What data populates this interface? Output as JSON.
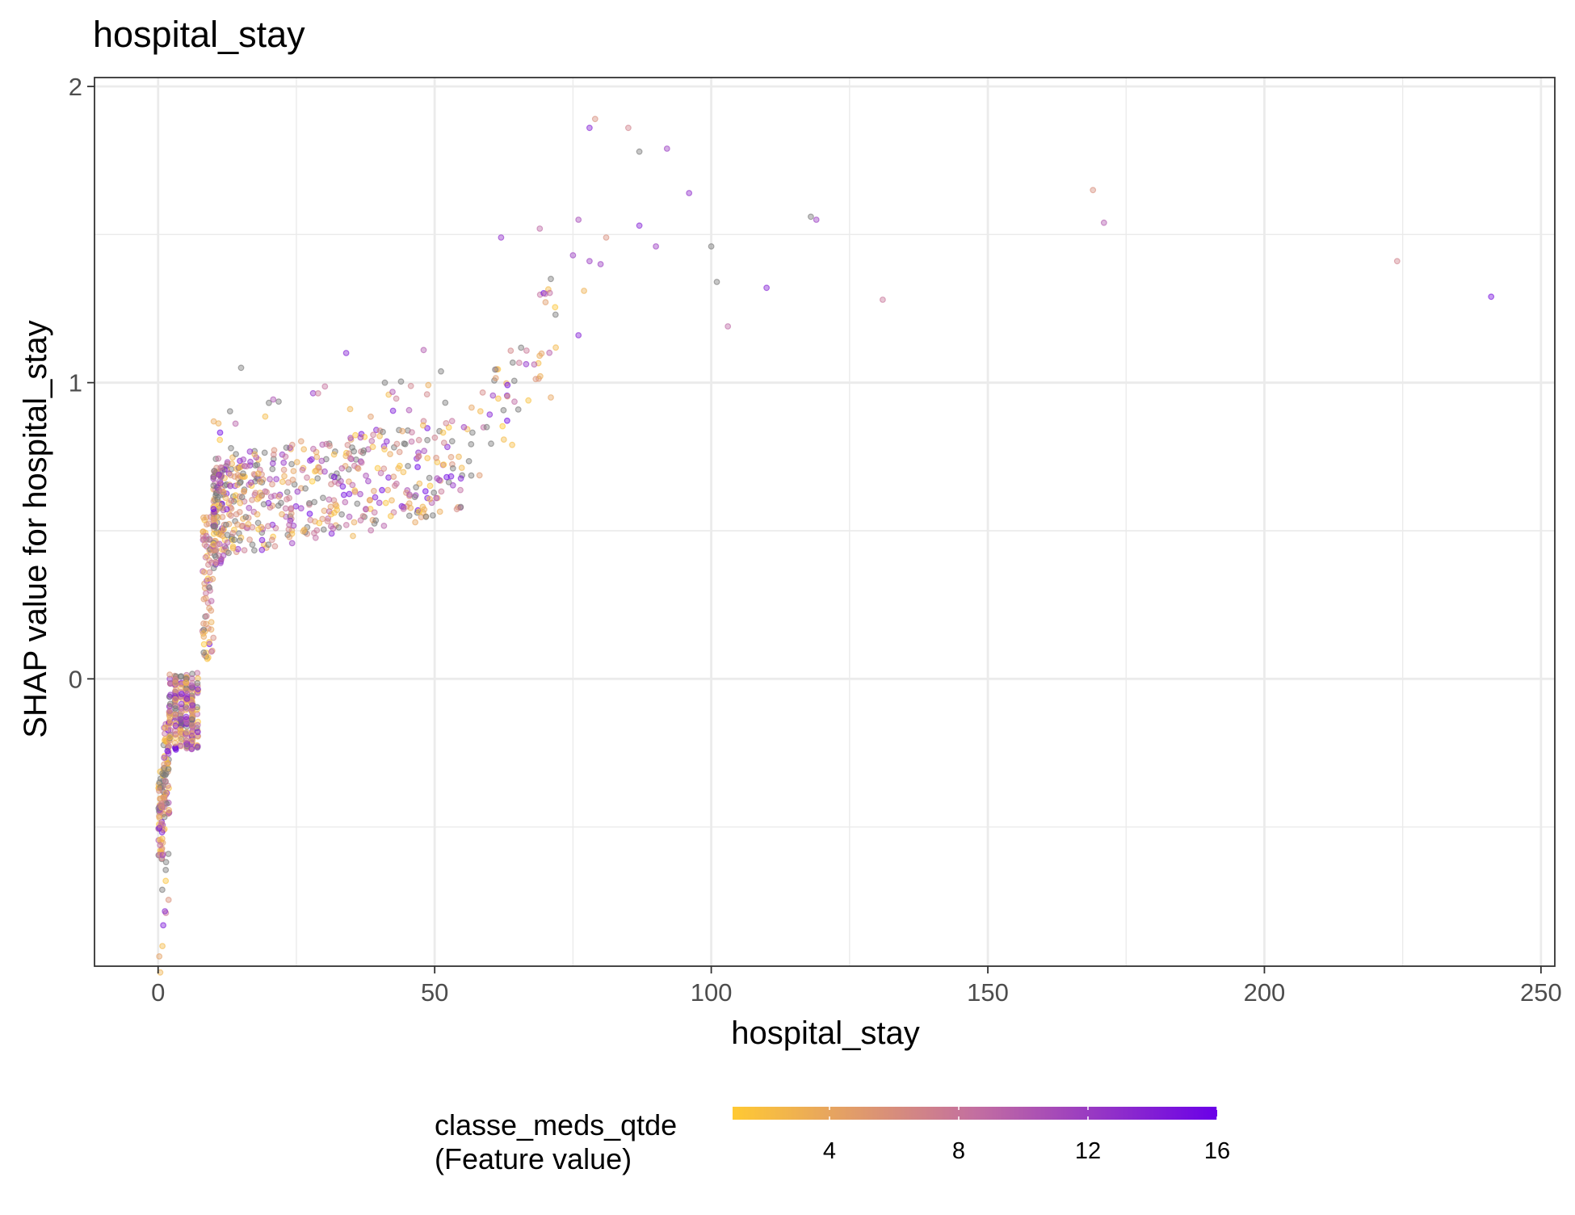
{
  "chart_data": {
    "type": "scatter",
    "title": "hospital_stay",
    "xlabel": "hospital_stay",
    "ylabel": "SHAP value for hospital_stay",
    "xlim": [
      -11.5,
      252.5
    ],
    "ylim": [
      -0.97,
      2.03
    ],
    "x_ticks": [
      0,
      50,
      100,
      150,
      200,
      250
    ],
    "y_ticks": [
      0,
      1,
      2
    ],
    "grid": true,
    "legend": {
      "position": "bottom",
      "title_line1": "classe_meds_qtde",
      "title_line2": "(Feature value)",
      "min": 1,
      "max": 16,
      "ticks": [
        4,
        8,
        12,
        16
      ],
      "color_low": "#FFC933",
      "color_mid": "#C36FA0",
      "color_high": "#6A00E8"
    },
    "missing_color": "#777777",
    "outlier_points": [
      {
        "x": 78,
        "y": 1.86,
        "c": 14
      },
      {
        "x": 79,
        "y": 1.89,
        "c": 6
      },
      {
        "x": 85,
        "y": 1.86,
        "c": 7
      },
      {
        "x": 87,
        "y": 1.78,
        "c": null
      },
      {
        "x": 92,
        "y": 1.79,
        "c": 12
      },
      {
        "x": 96,
        "y": 1.64,
        "c": 13
      },
      {
        "x": 87,
        "y": 1.53,
        "c": 14
      },
      {
        "x": 90,
        "y": 1.46,
        "c": 12
      },
      {
        "x": 100,
        "y": 1.46,
        "c": null
      },
      {
        "x": 101,
        "y": 1.34,
        "c": null
      },
      {
        "x": 103,
        "y": 1.19,
        "c": 9
      },
      {
        "x": 110,
        "y": 1.32,
        "c": 14
      },
      {
        "x": 118,
        "y": 1.56,
        "c": null
      },
      {
        "x": 119,
        "y": 1.55,
        "c": 12
      },
      {
        "x": 131,
        "y": 1.28,
        "c": 8
      },
      {
        "x": 169,
        "y": 1.65,
        "c": 6
      },
      {
        "x": 171,
        "y": 1.54,
        "c": 10
      },
      {
        "x": 224,
        "y": 1.41,
        "c": 7
      },
      {
        "x": 241,
        "y": 1.29,
        "c": 15
      },
      {
        "x": 76,
        "y": 1.55,
        "c": 11
      },
      {
        "x": 76,
        "y": 1.16,
        "c": 14
      },
      {
        "x": 77,
        "y": 1.31,
        "c": 3
      },
      {
        "x": 78,
        "y": 1.41,
        "c": 12
      },
      {
        "x": 80,
        "y": 1.4,
        "c": 12
      },
      {
        "x": 81,
        "y": 1.49,
        "c": 6
      },
      {
        "x": 75,
        "y": 1.43,
        "c": 12
      },
      {
        "x": 71,
        "y": 1.35,
        "c": null
      },
      {
        "x": 70,
        "y": 1.3,
        "c": 9
      },
      {
        "x": 69,
        "y": 1.52,
        "c": 9
      },
      {
        "x": 71,
        "y": 0.95,
        "c": 4
      },
      {
        "x": 64,
        "y": 0.79,
        "c": 2
      },
      {
        "x": 62,
        "y": 1.49,
        "c": 13
      },
      {
        "x": 34,
        "y": 1.1,
        "c": 14
      },
      {
        "x": 15,
        "y": 1.05,
        "c": null
      },
      {
        "x": 41,
        "y": 1.0,
        "c": null
      },
      {
        "x": 48,
        "y": 1.11,
        "c": 10
      }
    ]
  }
}
